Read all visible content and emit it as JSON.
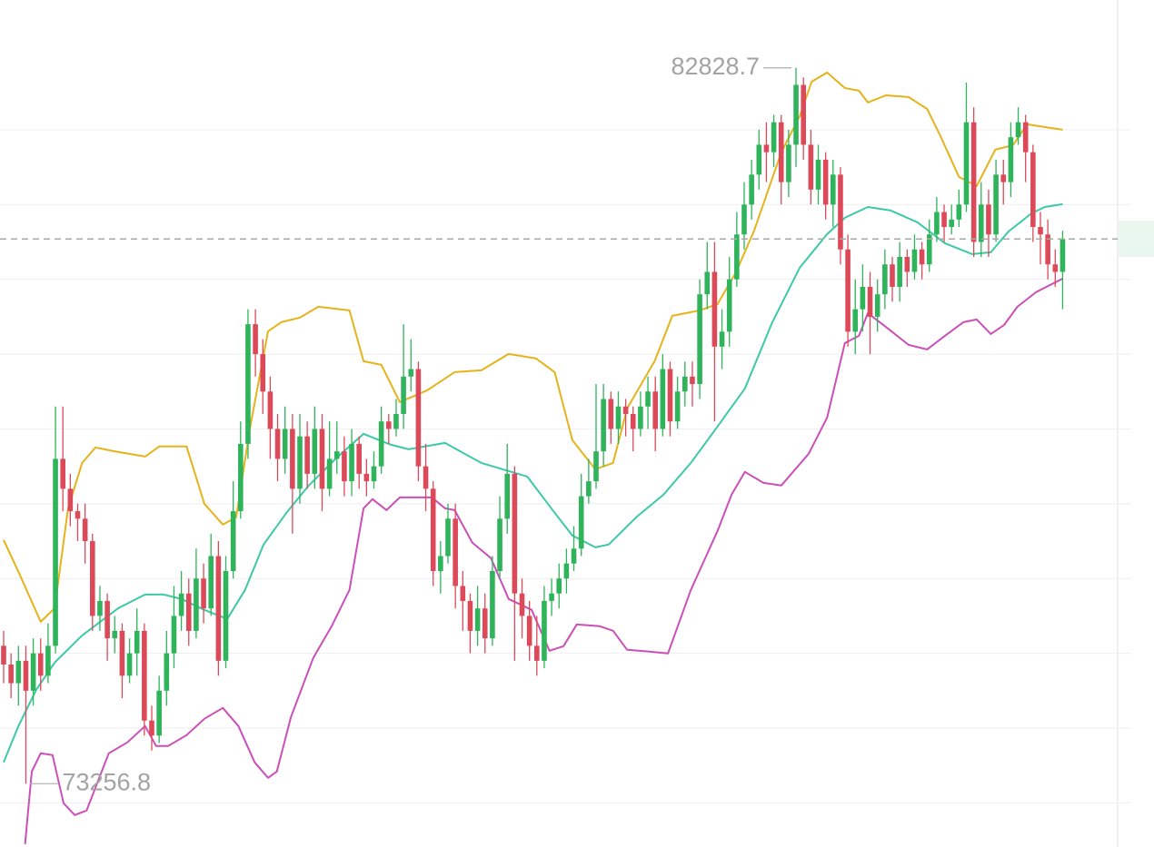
{
  "chart_data": {
    "type": "candlestick",
    "up_color": "#2fb35b",
    "down_color": "#dc4a5a",
    "ylim": [
      72410,
      83735
    ],
    "yticks": [
      73000,
      74000,
      75000,
      76000,
      77000,
      78000,
      79000,
      80000,
      81000,
      82000
    ],
    "grid": true,
    "open": [
      75100,
      74850,
      74600,
      74900,
      74500,
      75000,
      74700,
      75100,
      77600,
      77200,
      76900,
      76800,
      76500,
      75500,
      75700,
      75200,
      75300,
      74700,
      75000,
      75300,
      74100,
      73900,
      74500,
      75000,
      75500,
      75800,
      75300,
      76000,
      75600,
      76300,
      74900,
      76100,
      76900,
      77800,
      79400,
      79000,
      78500,
      78000,
      77600,
      78000,
      77200,
      77900,
      77400,
      78000,
      77200,
      77600,
      77700,
      77300,
      77800,
      77400,
      77300,
      77500,
      78100,
      78000,
      78200,
      78700,
      78800,
      77500,
      77200,
      76100,
      76300,
      76800,
      75900,
      75700,
      75300,
      75600,
      75200,
      76100,
      76800,
      77400,
      75800,
      75500,
      75100,
      74900,
      75700,
      75800,
      76000,
      76200,
      76400,
      77100,
      77300,
      77700,
      78400,
      78000,
      78300,
      78200,
      78000,
      78300,
      78500,
      78000,
      78800,
      78100,
      78500,
      78700,
      78600,
      79800,
      80100,
      79100,
      79300,
      80000,
      80600,
      81000,
      81400,
      81800,
      81700,
      82100,
      81300,
      81800,
      82600,
      81800,
      81200,
      81600,
      81000,
      81400,
      80400,
      79300,
      79600,
      79900,
      79500,
      79800,
      80200,
      79900,
      80300,
      80100,
      80400,
      80200,
      80600,
      80900,
      80700,
      80800,
      81000,
      82100,
      80500,
      81000,
      80600,
      81400,
      81300,
      81900,
      82100,
      81700,
      80700,
      80600,
      80200,
      80100
    ],
    "high": [
      75300,
      75000,
      75100,
      75100,
      75200,
      75200,
      75400,
      78300,
      78300,
      77400,
      77000,
      77000,
      76600,
      75900,
      75800,
      75500,
      75400,
      75200,
      75600,
      75400,
      74300,
      74700,
      75300,
      75900,
      76100,
      76000,
      76400,
      76200,
      76600,
      76500,
      76300,
      77300,
      78100,
      79600,
      79600,
      79200,
      78700,
      78200,
      78300,
      78200,
      78200,
      78100,
      78300,
      78200,
      78100,
      78100,
      77900,
      78000,
      77900,
      77600,
      77700,
      78300,
      78200,
      78400,
      79400,
      79200,
      78900,
      77800,
      77300,
      76500,
      77000,
      77000,
      76100,
      75800,
      75900,
      75800,
      76300,
      77100,
      77800,
      77500,
      76000,
      75700,
      75500,
      75900,
      76000,
      76200,
      76400,
      76700,
      77400,
      77600,
      78600,
      78600,
      78500,
      78500,
      78400,
      78300,
      78500,
      78700,
      78700,
      79000,
      78900,
      78700,
      78900,
      78900,
      80000,
      80500,
      80500,
      79600,
      80300,
      80900,
      81300,
      81600,
      82000,
      82100,
      82200,
      82200,
      82000,
      82828.7,
      82700,
      82000,
      81800,
      81700,
      81600,
      81500,
      80600,
      80000,
      80200,
      80100,
      80000,
      80400,
      80300,
      80500,
      80400,
      80600,
      80500,
      80800,
      81100,
      81000,
      81000,
      81200,
      82630,
      82300,
      81300,
      81200,
      81600,
      81600,
      82100,
      82300,
      82200,
      81800,
      80900,
      80800,
      80400,
      80650
    ],
    "low": [
      74600,
      74400,
      74300,
      73256.8,
      74300,
      74500,
      74600,
      75000,
      76900,
      76700,
      76500,
      76200,
      75300,
      75300,
      74900,
      75000,
      74400,
      74600,
      74700,
      73900,
      73700,
      73800,
      74300,
      74800,
      75300,
      75100,
      75200,
      75400,
      75500,
      74700,
      74800,
      76000,
      76800,
      77600,
      78700,
      78200,
      77600,
      77300,
      77400,
      76600,
      77000,
      77200,
      77200,
      76900,
      77100,
      77400,
      77100,
      77100,
      77200,
      77100,
      77200,
      77400,
      77800,
      77900,
      78000,
      78500,
      77300,
      76900,
      75900,
      75800,
      76200,
      75600,
      75300,
      75000,
      75100,
      75000,
      75100,
      76000,
      76600,
      74900,
      75200,
      74900,
      74700,
      74800,
      75500,
      75600,
      75800,
      76100,
      76300,
      77000,
      77200,
      77500,
      77800,
      77800,
      77900,
      77700,
      77900,
      78000,
      77700,
      77900,
      77900,
      78000,
      78300,
      78300,
      78400,
      79600,
      78100,
      78800,
      79100,
      79900,
      80400,
      80800,
      81200,
      81300,
      81500,
      81000,
      81100,
      81500,
      81600,
      81000,
      81000,
      80800,
      80700,
      80200,
      79100,
      79000,
      79300,
      79000,
      79300,
      79600,
      79700,
      79700,
      79900,
      80000,
      80000,
      80100,
      80500,
      80500,
      80600,
      80700,
      80900,
      80300,
      80300,
      80300,
      80500,
      81000,
      81100,
      81800,
      81300,
      80500,
      80200,
      80000,
      79900,
      79600
    ],
    "close": [
      74850,
      74600,
      74900,
      74500,
      75000,
      74700,
      75100,
      77600,
      77200,
      76900,
      76800,
      76500,
      75500,
      75700,
      75200,
      75300,
      74700,
      75000,
      75300,
      74100,
      73900,
      74500,
      75000,
      75500,
      75800,
      75300,
      76000,
      75600,
      76300,
      74900,
      76100,
      76900,
      77800,
      79400,
      79000,
      78500,
      78000,
      77600,
      78000,
      77200,
      77900,
      77400,
      78000,
      77200,
      77600,
      77700,
      77300,
      77800,
      77400,
      77300,
      77500,
      78100,
      78000,
      78200,
      78700,
      78800,
      77500,
      77200,
      76100,
      76300,
      76800,
      75900,
      75700,
      75300,
      75600,
      75200,
      76100,
      76800,
      77400,
      75800,
      75500,
      75100,
      74900,
      75700,
      75800,
      76000,
      76200,
      76400,
      77100,
      77300,
      77700,
      78400,
      78000,
      78300,
      78200,
      78000,
      78300,
      78500,
      78000,
      78800,
      78100,
      78500,
      78700,
      78600,
      79800,
      80100,
      79100,
      79300,
      80000,
      80600,
      81000,
      81400,
      81800,
      81700,
      82100,
      81300,
      81800,
      82600,
      81800,
      81200,
      81600,
      81000,
      81400,
      80400,
      79300,
      79600,
      79900,
      79500,
      79800,
      80200,
      79900,
      80300,
      80100,
      80400,
      80200,
      80600,
      80900,
      80700,
      80800,
      81000,
      82100,
      80500,
      81000,
      80600,
      81400,
      81300,
      81900,
      82100,
      81700,
      80700,
      80600,
      80200,
      80100,
      80540
    ],
    "lines": [
      {
        "color": "#e5b31b",
        "x": [
          0,
          2.0,
          5.0,
          6.9,
          8.7,
          10.6,
          12.4,
          14.8,
          19.1,
          21.0,
          24.7,
          27.1,
          29.6,
          31.4,
          33.3,
          35.7,
          37.5,
          40.0,
          42.5,
          46.7,
          48.6,
          51.0,
          53.5,
          57.2,
          60.9,
          64.5,
          68.2,
          71.9,
          74.4,
          76.8,
          79.9,
          82.3,
          84.2,
          87.9,
          90.3,
          94.0,
          96.4,
          98.9,
          101.3,
          105.0,
          107.5,
          109.1,
          111.2,
          113.6,
          115.5,
          116.7,
          119.1,
          122.2,
          124.7,
          126.5,
          129.0,
          131.4,
          133.9,
          136.3,
          138.2,
          140.6,
          143
        ],
        "values": [
          76515,
          76090,
          75422,
          75604,
          76939,
          77546,
          77752,
          77704,
          77631,
          77765,
          77765,
          77000,
          76721,
          76818,
          78032,
          79306,
          79427,
          79488,
          79633,
          79585,
          78905,
          78857,
          78359,
          78517,
          78760,
          78784,
          79002,
          78942,
          78760,
          77849,
          77461,
          77546,
          78274,
          78905,
          79512,
          79585,
          79670,
          80095,
          80641,
          81697,
          82182,
          82643,
          82765,
          82558,
          82522,
          82364,
          82461,
          82437,
          82279,
          81915,
          81369,
          81248,
          81733,
          81794,
          82073,
          82036,
          82000
        ]
      },
      {
        "color": "#3cc9a6",
        "x": [
          0,
          2.0,
          4.4,
          6.9,
          10.6,
          15.5,
          19.1,
          21.6,
          24.0,
          27.1,
          30.2,
          32.6,
          35.1,
          38.2,
          41.2,
          44.9,
          48.6,
          52.3,
          54.7,
          59.6,
          64.5,
          70.7,
          74.4,
          76.8,
          79.9,
          81.7,
          85.4,
          89.1,
          92.8,
          96.4,
          100.1,
          103.8,
          107.5,
          111.2,
          113.6,
          116.7,
          119.8,
          123.4,
          127.1,
          130.8,
          133.3,
          135.7,
          138.8,
          140.6,
          143
        ],
        "values": [
          73541,
          74027,
          74512,
          74876,
          75240,
          75604,
          75786,
          75786,
          75726,
          75580,
          75459,
          75847,
          76454,
          76879,
          77243,
          77607,
          77934,
          77789,
          77728,
          77813,
          77546,
          77364,
          76879,
          76575,
          76417,
          76454,
          76818,
          77121,
          77546,
          78032,
          78541,
          79427,
          80155,
          80604,
          80823,
          80968,
          80920,
          80762,
          80483,
          80337,
          80362,
          80641,
          80883,
          80968,
          81005
        ]
      },
      {
        "color": "#cc4fb8",
        "x": [
          2.9,
          3.8,
          5.0,
          6.6,
          8.1,
          9.6,
          11.2,
          14.2,
          16.7,
          19.1,
          20.6,
          22.2,
          24.7,
          27.1,
          29.6,
          31.7,
          33.9,
          35.7,
          36.9,
          38.8,
          41.8,
          44.3,
          46.7,
          48.6,
          49.8,
          51.7,
          53.5,
          57.8,
          59.6,
          60.9,
          63.3,
          65.8,
          68.2,
          71.3,
          73.7,
          75.6,
          77.4,
          80.5,
          82.3,
          84.2,
          87.2,
          89.7,
          92.8,
          96.4,
          98.3,
          100.1,
          102.6,
          105.0,
          108.7,
          111.2,
          113.6,
          115.5,
          116.7,
          119.1,
          122.2,
          124.7,
          127.1,
          129.6,
          131.4,
          133.3,
          135.1,
          136.9,
          139.4,
          143
        ],
        "values": [
          72449,
          73420,
          73663,
          73638,
          72995,
          72837,
          72898,
          73663,
          73808,
          74027,
          73760,
          73760,
          73905,
          74124,
          74269,
          74027,
          73541,
          73335,
          73420,
          74148,
          74937,
          75362,
          75847,
          76939,
          77061,
          76915,
          77085,
          77085,
          76939,
          76915,
          76478,
          76272,
          75726,
          75580,
          75034,
          75095,
          75386,
          75362,
          75301,
          75046,
          75022,
          74998,
          75847,
          76636,
          77121,
          77425,
          77279,
          77243,
          77667,
          78153,
          79148,
          79245,
          79549,
          79366,
          79124,
          79063,
          79245,
          79427,
          79464,
          79269,
          79391,
          79633,
          79828,
          80010
        ]
      }
    ]
  }
}
